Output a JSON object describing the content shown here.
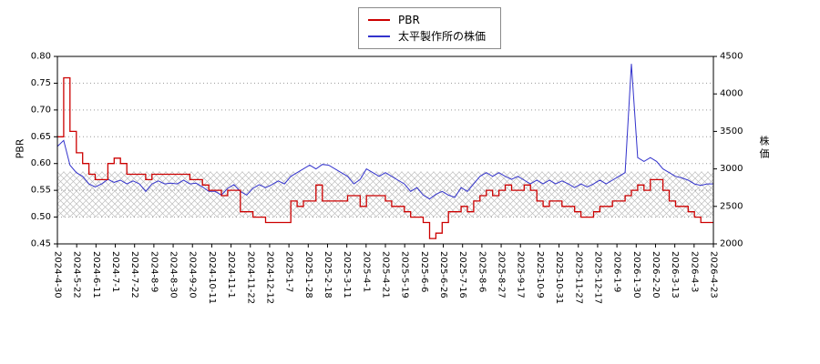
{
  "chart_data": {
    "type": "line",
    "title": "",
    "legend_position": "top-center",
    "grid": "horizontal-dotted",
    "band": {
      "axis": "left",
      "from": 0.5,
      "to": 0.585,
      "pattern": "crosshatch",
      "color": "#bdbdbd"
    },
    "y_left": {
      "label": "PBR",
      "min": 0.45,
      "max": 0.8,
      "ticks": [
        0.45,
        0.5,
        0.55,
        0.6,
        0.65,
        0.7,
        0.75,
        0.8
      ],
      "tick_labels": [
        "0.45",
        "0.50",
        "0.55",
        "0.60",
        "0.65",
        "0.70",
        "0.75",
        "0.80"
      ]
    },
    "y_right": {
      "label": "株価",
      "min": 2000,
      "max": 4500,
      "ticks": [
        2000,
        2500,
        3000,
        3500,
        4000,
        4500
      ],
      "tick_labels": [
        "2000",
        "2500",
        "3000",
        "3500",
        "4000",
        "4500"
      ]
    },
    "x_ticks": [
      "2024-4-30",
      "2024-5-22",
      "2024-6-11",
      "2024-7-1",
      "2024-7-22",
      "2024-8-9",
      "2024-8-30",
      "2024-9-20",
      "2024-10-11",
      "2024-11-1",
      "2024-11-22",
      "2024-12-12",
      "2025-1-7",
      "2025-1-28",
      "2025-2-18",
      "2025-3-11",
      "2025-4-1",
      "2025-4-21",
      "2025-5-19",
      "2025-6-6",
      "2025-6-26",
      "2025-7-16",
      "2025-8-6",
      "2025-8-27",
      "2025-9-17",
      "2025-10-9",
      "2025-10-31",
      "2025-11-27",
      "2025-12-17",
      "2026-1-9",
      "2026-1-30",
      "2026-2-20",
      "2026-3-13",
      "2026-4-3",
      "2026-4-23"
    ],
    "series": [
      {
        "name": "PBR",
        "axis": "left",
        "color": "#cc0000",
        "style": "step",
        "values": [
          0.65,
          0.76,
          0.66,
          0.62,
          0.6,
          0.58,
          0.57,
          0.57,
          0.6,
          0.61,
          0.6,
          0.58,
          0.58,
          0.58,
          0.57,
          0.58,
          0.58,
          0.58,
          0.58,
          0.58,
          0.58,
          0.57,
          0.57,
          0.56,
          0.55,
          0.55,
          0.54,
          0.55,
          0.55,
          0.51,
          0.51,
          0.5,
          0.5,
          0.49,
          0.49,
          0.49,
          0.49,
          0.53,
          0.52,
          0.53,
          0.53,
          0.56,
          0.53,
          0.53,
          0.53,
          0.53,
          0.54,
          0.54,
          0.52,
          0.54,
          0.54,
          0.54,
          0.53,
          0.52,
          0.52,
          0.51,
          0.5,
          0.5,
          0.49,
          0.46,
          0.47,
          0.49,
          0.51,
          0.51,
          0.52,
          0.51,
          0.53,
          0.54,
          0.55,
          0.54,
          0.55,
          0.56,
          0.55,
          0.55,
          0.56,
          0.55,
          0.53,
          0.52,
          0.53,
          0.53,
          0.52,
          0.52,
          0.51,
          0.5,
          0.5,
          0.51,
          0.52,
          0.52,
          0.53,
          0.53,
          0.54,
          0.55,
          0.56,
          0.55,
          0.57,
          0.57,
          0.55,
          0.53,
          0.52,
          0.52,
          0.51,
          0.5,
          0.49,
          0.49,
          0.49
        ]
      },
      {
        "name": "太平製作所の株価",
        "axis": "right",
        "color": "#3333cc",
        "style": "line",
        "values": [
          3300,
          3380,
          3050,
          2950,
          2900,
          2800,
          2760,
          2800,
          2860,
          2820,
          2850,
          2800,
          2840,
          2800,
          2700,
          2800,
          2840,
          2800,
          2810,
          2800,
          2850,
          2800,
          2810,
          2760,
          2700,
          2700,
          2650,
          2740,
          2790,
          2700,
          2650,
          2740,
          2790,
          2750,
          2790,
          2840,
          2800,
          2900,
          2950,
          3000,
          3050,
          3000,
          3060,
          3050,
          3000,
          2950,
          2900,
          2800,
          2860,
          3000,
          2950,
          2900,
          2950,
          2900,
          2850,
          2800,
          2700,
          2750,
          2650,
          2600,
          2660,
          2700,
          2650,
          2620,
          2750,
          2700,
          2800,
          2900,
          2950,
          2900,
          2950,
          2900,
          2860,
          2900,
          2850,
          2800,
          2850,
          2800,
          2850,
          2800,
          2840,
          2800,
          2750,
          2800,
          2760,
          2800,
          2850,
          2800,
          2850,
          2900,
          2950,
          4400,
          3150,
          3100,
          3150,
          3100,
          3000,
          2950,
          2900,
          2880,
          2850,
          2800,
          2780,
          2800,
          2800
        ]
      }
    ]
  }
}
